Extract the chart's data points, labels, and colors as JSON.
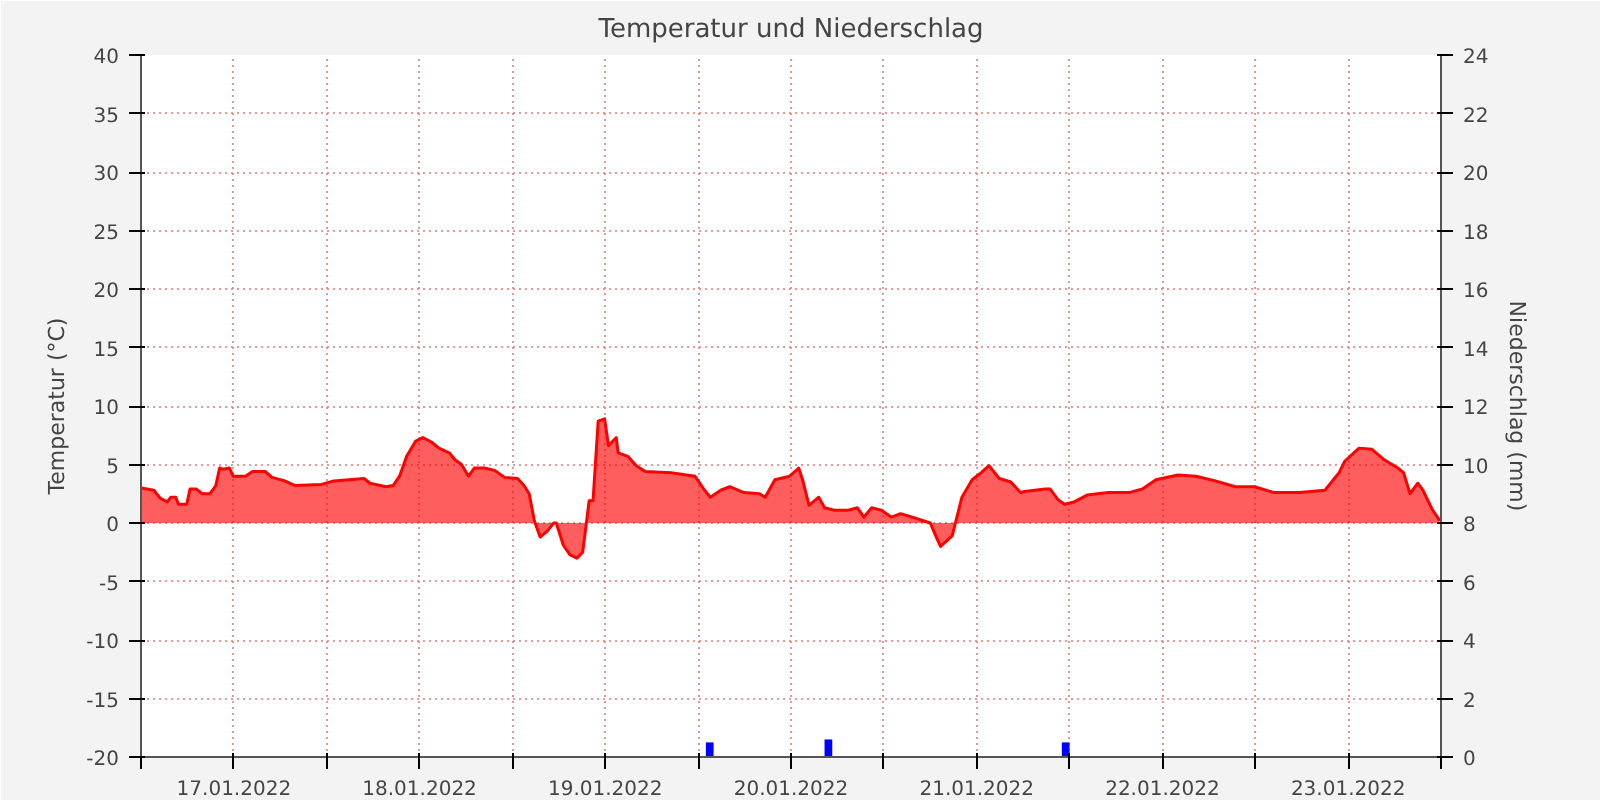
{
  "chart_data": {
    "type": "area",
    "title": "Temperatur und Niederschlag",
    "ylabel": "Temperatur (°C)",
    "y2label": "Niederschlag (mm)",
    "xlim": [
      "2022-01-17T00:00",
      "2022-01-24T00:00"
    ],
    "xticks": [
      {
        "value": "2022-01-17T00:00",
        "label": null
      },
      {
        "value": "2022-01-17T12:00",
        "label": "17.01.2022"
      },
      {
        "value": "2022-01-18T00:00",
        "label": null
      },
      {
        "value": "2022-01-18T12:00",
        "label": "18.01.2022"
      },
      {
        "value": "2022-01-19T00:00",
        "label": null
      },
      {
        "value": "2022-01-19T12:00",
        "label": "19.01.2022"
      },
      {
        "value": "2022-01-20T00:00",
        "label": null
      },
      {
        "value": "2022-01-20T12:00",
        "label": "20.01.2022"
      },
      {
        "value": "2022-01-21T00:00",
        "label": null
      },
      {
        "value": "2022-01-21T12:00",
        "label": "21.01.2022"
      },
      {
        "value": "2022-01-22T00:00",
        "label": null
      },
      {
        "value": "2022-01-22T12:00",
        "label": "22.01.2022"
      },
      {
        "value": "2022-01-23T00:00",
        "label": null
      },
      {
        "value": "2022-01-23T12:00",
        "label": "23.01.2022"
      },
      {
        "value": "2022-01-24T00:00",
        "label": null
      }
    ],
    "ylim": [
      -20,
      40
    ],
    "yticks": [
      -20,
      -15,
      -10,
      -5,
      0,
      5,
      10,
      15,
      20,
      25,
      30,
      35,
      40
    ],
    "y2lim": [
      0,
      24
    ],
    "y2ticks": [
      0,
      2,
      4,
      6,
      8,
      10,
      12,
      14,
      16,
      18,
      20,
      22,
      24
    ],
    "grid": true,
    "series": [
      {
        "color": "#ff0000",
        "x": [
          "2022-01-17T00:00",
          "2022-01-17T01:40",
          "2022-01-17T02:30",
          "2022-01-17T03:25",
          "2022-01-17T03:50",
          "2022-01-17T04:30",
          "2022-01-17T04:50",
          "2022-01-17T05:55",
          "2022-01-17T06:20",
          "2022-01-17T07:10",
          "2022-01-17T07:55",
          "2022-01-17T08:55",
          "2022-01-17T09:40",
          "2022-01-17T10:10",
          "2022-01-17T10:35",
          "2022-01-17T11:25",
          "2022-01-17T11:55",
          "2022-01-17T13:30",
          "2022-01-17T14:25",
          "2022-01-17T16:05",
          "2022-01-17T16:55",
          "2022-01-17T18:35",
          "2022-01-17T19:55",
          "2022-01-17T23:20",
          "2022-01-18T00:55",
          "2022-01-18T04:50",
          "2022-01-18T05:35",
          "2022-01-18T07:40",
          "2022-01-18T08:35",
          "2022-01-18T09:25",
          "2022-01-18T10:20",
          "2022-01-18T11:30",
          "2022-01-18T12:25",
          "2022-01-18T13:35",
          "2022-01-18T14:30",
          "2022-01-18T15:50",
          "2022-01-18T16:35",
          "2022-01-18T17:25",
          "2022-01-18T18:20",
          "2022-01-18T19:05",
          "2022-01-18T20:25",
          "2022-01-18T21:40",
          "2022-01-18T23:00",
          "2022-01-19T00:40",
          "2022-01-19T01:30",
          "2022-01-19T02:10",
          "2022-01-19T02:50",
          "2022-01-19T03:35",
          "2022-01-19T04:30",
          "2022-01-19T05:20",
          "2022-01-19T05:40",
          "2022-01-19T06:35",
          "2022-01-19T07:25",
          "2022-01-19T08:20",
          "2022-01-19T09:05",
          "2022-01-19T09:55",
          "2022-01-19T10:25",
          "2022-01-19T11:05",
          "2022-01-19T11:55",
          "2022-01-19T12:25",
          "2022-01-19T13:25",
          "2022-01-19T13:40",
          "2022-01-19T14:55",
          "2022-01-19T16:00",
          "2022-01-19T17:10",
          "2022-01-19T20:30",
          "2022-01-19T23:35",
          "2022-01-20T00:50",
          "2022-01-20T01:35",
          "2022-01-20T02:55",
          "2022-01-20T04:05",
          "2022-01-20T05:55",
          "2022-01-20T07:55",
          "2022-01-20T08:40",
          "2022-01-20T09:55",
          "2022-01-20T11:50",
          "2022-01-20T13:00",
          "2022-01-20T13:30",
          "2022-01-20T14:20",
          "2022-01-20T15:35",
          "2022-01-20T16:20",
          "2022-01-20T17:35",
          "2022-01-20T19:25",
          "2022-01-20T20:35",
          "2022-01-20T21:25",
          "2022-01-20T22:25",
          "2022-01-20T23:40",
          "2022-01-21T01:00",
          "2022-01-21T02:10",
          "2022-01-21T03:40",
          "2022-01-21T06:00",
          "2022-01-21T06:50",
          "2022-01-21T07:20",
          "2022-01-21T08:50",
          "2022-01-21T10:05",
          "2022-01-21T11:25",
          "2022-01-21T12:35",
          "2022-01-21T13:35",
          "2022-01-21T14:55",
          "2022-01-21T16:25",
          "2022-01-21T17:40",
          "2022-01-21T18:10",
          "2022-01-21T20:50",
          "2022-01-21T21:30",
          "2022-01-21T22:30",
          "2022-01-21T23:20",
          "2022-01-22T00:35",
          "2022-01-22T02:20",
          "2022-01-22T03:35",
          "2022-01-22T05:05",
          "2022-01-22T07:40",
          "2022-01-22T09:25",
          "2022-01-22T11:10",
          "2022-01-22T14:00",
          "2022-01-22T16:20",
          "2022-01-22T18:50",
          "2022-01-22T21:25",
          "2022-01-22T23:55",
          "2022-01-23T02:25",
          "2022-01-23T05:40",
          "2022-01-23T09:00",
          "2022-01-23T10:50",
          "2022-01-23T11:35",
          "2022-01-23T13:25",
          "2022-01-23T15:05",
          "2022-01-23T16:40",
          "2022-01-23T18:25",
          "2022-01-23T19:10",
          "2022-01-23T20:00",
          "2022-01-23T21:00",
          "2022-01-23T21:40",
          "2022-01-23T22:50",
          "2022-01-23T23:50"
        ],
        "values": [
          3.0,
          2.8,
          2.1,
          1.8,
          2.2,
          2.2,
          1.6,
          1.6,
          2.9,
          2.9,
          2.5,
          2.5,
          3.2,
          4.7,
          4.6,
          4.7,
          4.0,
          4.0,
          4.4,
          4.4,
          3.9,
          3.6,
          3.2,
          3.3,
          3.6,
          3.8,
          3.4,
          3.1,
          3.2,
          4.0,
          5.7,
          7.0,
          7.3,
          6.9,
          6.4,
          6.0,
          5.4,
          5.0,
          4.0,
          4.7,
          4.7,
          4.5,
          3.9,
          3.8,
          3.2,
          2.5,
          0.2,
          -1.2,
          -0.7,
          0,
          0,
          -1.9,
          -2.7,
          -3.0,
          -2.5,
          1.9,
          1.9,
          8.7,
          8.9,
          6.6,
          7.3,
          6.0,
          5.7,
          4.9,
          4.4,
          4.3,
          4.0,
          2.8,
          2.2,
          2.8,
          3.1,
          2.6,
          2.5,
          2.2,
          3.7,
          4.0,
          4.7,
          3.7,
          1.5,
          2.2,
          1.3,
          1.1,
          1.1,
          1.3,
          0.5,
          1.3,
          1.1,
          0.5,
          0.8,
          0.5,
          0,
          -1.3,
          -2.0,
          -1.1,
          2.2,
          3.7,
          4.3,
          4.9,
          3.8,
          3.5,
          2.6,
          2.7,
          2.9,
          2.9,
          2.0,
          1.6,
          1.8,
          2.4,
          2.5,
          2.6,
          2.6,
          2.9,
          3.7,
          4.1,
          4.0,
          3.6,
          3.1,
          3.1,
          2.6,
          2.6,
          2.8,
          4.3,
          5.3,
          6.4,
          6.3,
          5.4,
          4.7,
          4.3,
          2.5,
          3.4,
          2.8,
          1.2,
          0.2
        ]
      },
      {
        "type": "bar",
        "axis": "y2",
        "color": "#0000ff",
        "x": [
          "2022-01-20T01:30",
          "2022-01-20T16:50",
          "2022-01-21T23:30"
        ],
        "values": [
          0.5,
          0.6,
          0.5
        ]
      }
    ]
  }
}
